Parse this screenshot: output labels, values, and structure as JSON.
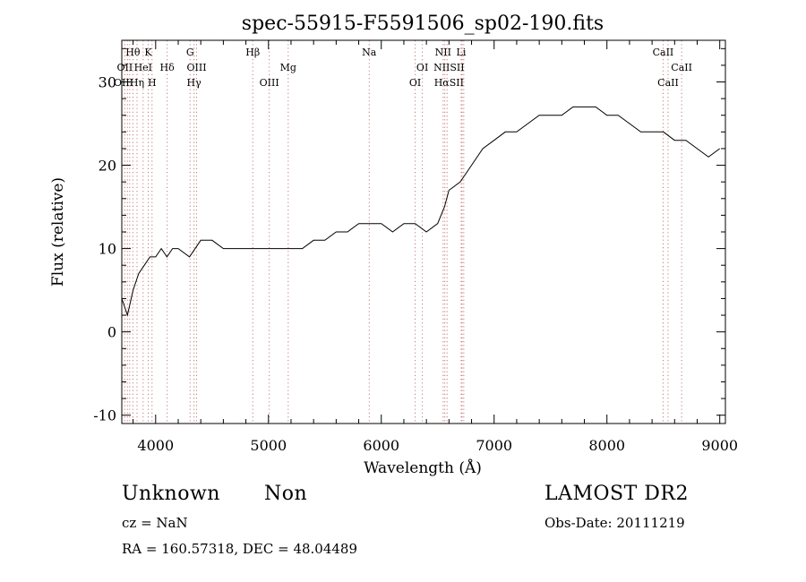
{
  "chart_data": {
    "type": "line",
    "title": "spec-55915-F5591506_sp02-190.fits",
    "xlabel": "Wavelength (Å)",
    "ylabel": "Flux (relative)",
    "xlim": [
      3700,
      9050
    ],
    "ylim": [
      -11,
      35
    ],
    "x_ticks": [
      4000,
      5000,
      6000,
      7000,
      8000,
      9000
    ],
    "y_ticks": [
      -10,
      0,
      10,
      20,
      30
    ],
    "series": [
      {
        "x": [
          3700,
          3750,
          3800,
          3850,
          3900,
          3950,
          4000,
          4050,
          4100,
          4150,
          4200,
          4300,
          4400,
          4500,
          4600,
          4700,
          4800,
          4900,
          5000,
          5100,
          5200,
          5300,
          5400,
          5500,
          5600,
          5700,
          5800,
          5900,
          6000,
          6100,
          6200,
          6300,
          6400,
          6500,
          6560,
          6600,
          6700,
          6800,
          6900,
          7000,
          7100,
          7200,
          7300,
          7400,
          7500,
          7600,
          7700,
          7800,
          7900,
          8000,
          8100,
          8200,
          8300,
          8400,
          8500,
          8600,
          8700,
          8800,
          8900,
          9000
        ],
        "y": [
          4,
          2,
          5,
          7,
          8,
          9,
          9,
          10,
          9,
          10,
          10,
          9,
          11,
          11,
          10,
          10,
          10,
          10,
          10,
          10,
          10,
          10,
          11,
          11,
          12,
          12,
          13,
          13,
          13,
          12,
          13,
          13,
          12,
          13,
          15,
          17,
          18,
          20,
          22,
          23,
          24,
          24,
          25,
          26,
          26,
          26,
          27,
          27,
          27,
          26,
          26,
          25,
          24,
          24,
          24,
          23,
          23,
          22,
          21,
          22
        ]
      }
    ],
    "line_labels": [
      {
        "label": "Hθ",
        "x": 3798,
        "row": 1
      },
      {
        "label": "K",
        "x": 3934,
        "row": 1
      },
      {
        "label": "G",
        "x": 4305,
        "row": 1
      },
      {
        "label": "Hβ",
        "x": 4861,
        "row": 1
      },
      {
        "label": "Na",
        "x": 5893,
        "row": 1
      },
      {
        "label": "NII",
        "x": 6548,
        "row": 1
      },
      {
        "label": "Li",
        "x": 6708,
        "row": 1
      },
      {
        "label": "CaII",
        "x": 8498,
        "row": 1
      },
      {
        "label": "OII",
        "x": 3727,
        "row": 2
      },
      {
        "label": "HeI",
        "x": 3889,
        "row": 2
      },
      {
        "label": "Hδ",
        "x": 4102,
        "row": 2
      },
      {
        "label": "OIII",
        "x": 4363,
        "row": 2
      },
      {
        "label": "Mg",
        "x": 5175,
        "row": 2
      },
      {
        "label": "OI",
        "x": 6364,
        "row": 2
      },
      {
        "label": "NIISII",
        "x": 6600,
        "row": 2
      },
      {
        "label": "CaII",
        "x": 8662,
        "row": 2
      },
      {
        "label": "OIII",
        "x": 3700,
        "row": 3
      },
      {
        "label": "Hη",
        "x": 3835,
        "row": 3
      },
      {
        "label": "H",
        "x": 3968,
        "row": 3
      },
      {
        "label": "Hγ",
        "x": 4340,
        "row": 3
      },
      {
        "label": "OIII",
        "x": 5007,
        "row": 3
      },
      {
        "label": "OI",
        "x": 6300,
        "row": 3
      },
      {
        "label": "HαSII",
        "x": 6600,
        "row": 3
      },
      {
        "label": "CaII",
        "x": 8542,
        "row": 3
      }
    ],
    "line_positions": [
      3727,
      3750,
      3770,
      3798,
      3835,
      3889,
      3934,
      3968,
      4102,
      4305,
      4340,
      4363,
      4861,
      5007,
      5175,
      5893,
      6300,
      6364,
      6548,
      6563,
      6583,
      6708,
      6716,
      6731,
      8498,
      8542,
      8662
    ]
  },
  "info": {
    "object_class": "Unknown",
    "subclass": "Non",
    "cz": "cz = NaN",
    "coords": "RA = 160.57318, DEC =  48.04489",
    "survey": "LAMOST DR2",
    "obs_date": "Obs-Date: 20111219"
  }
}
